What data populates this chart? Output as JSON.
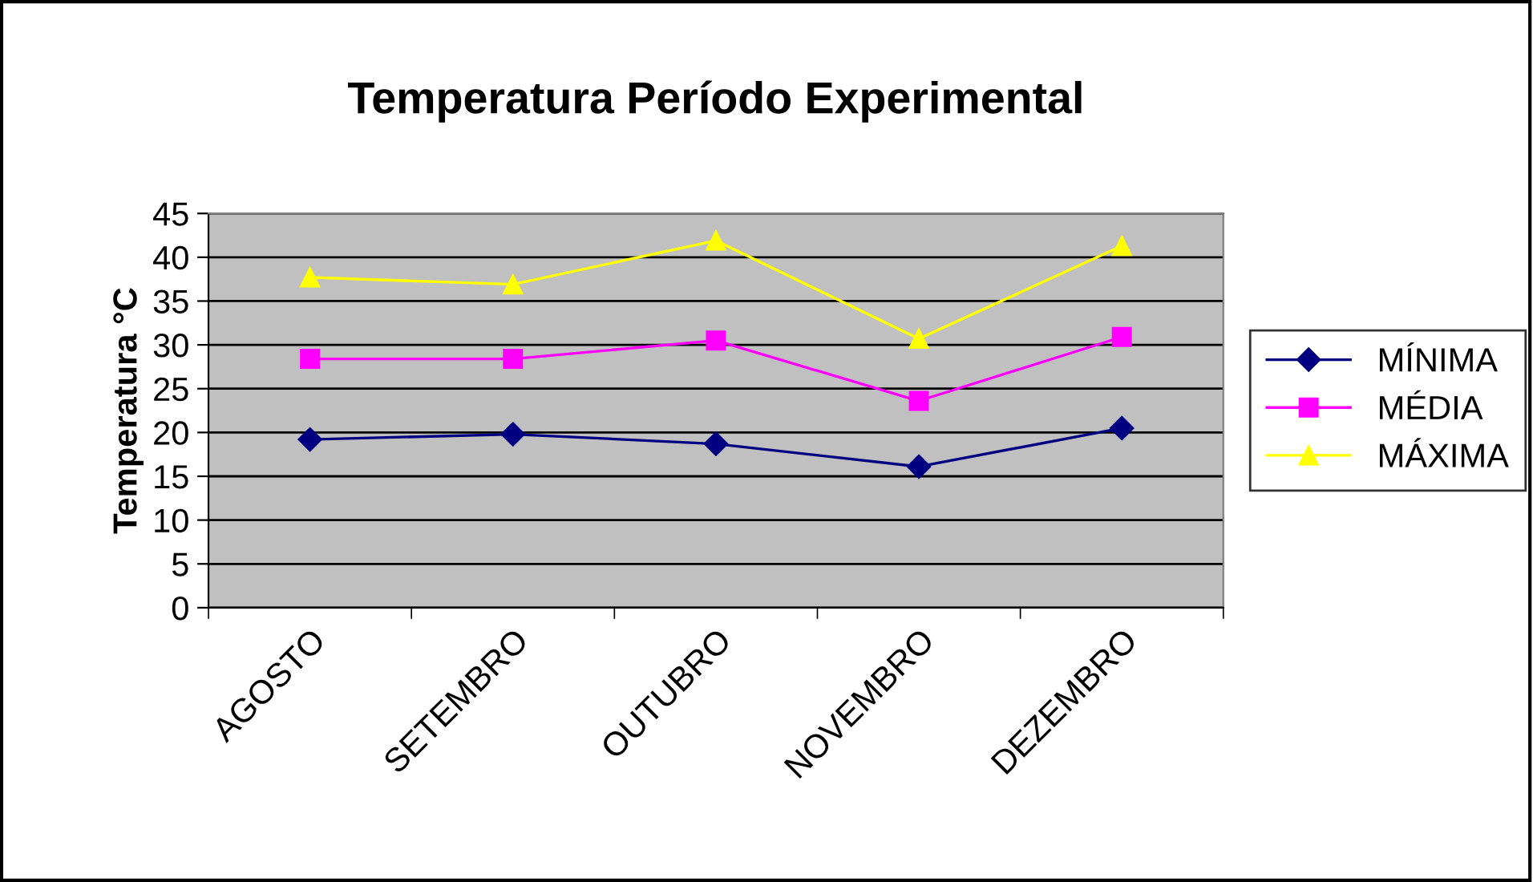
{
  "chart_data": {
    "type": "line",
    "title": "Temperatura Período Experimental",
    "ylabel": "Temperatura °C",
    "categories": [
      "AGOSTO",
      "SETEMBRO",
      "OUTUBRO",
      "NOVEMBRO",
      "DEZEMBRO"
    ],
    "series": [
      {
        "name": "MÍNIMA",
        "color": "#000080",
        "marker": "diamond",
        "values": [
          19.2,
          19.8,
          18.7,
          16.1,
          20.5
        ]
      },
      {
        "name": "MÉDIA",
        "color": "#ff00ff",
        "marker": "square",
        "values": [
          28.4,
          28.4,
          30.5,
          23.6,
          30.9
        ]
      },
      {
        "name": "MÁXIMA",
        "color": "#ffff00",
        "marker": "triangle",
        "values": [
          37.7,
          36.9,
          41.9,
          30.7,
          41.3
        ]
      }
    ],
    "ylim": [
      0,
      45
    ],
    "yticks": [
      0,
      5,
      10,
      15,
      20,
      25,
      30,
      35,
      40,
      45
    ],
    "grid": "y",
    "legend": "right"
  }
}
